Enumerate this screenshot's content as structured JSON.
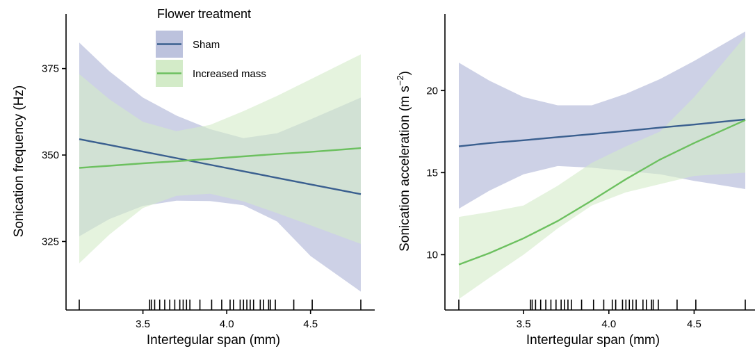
{
  "legend": {
    "title": "Flower treatment",
    "placement": "top-left of left panel"
  },
  "colors": {
    "sham_line": "#3a5f8f",
    "sham_band": "#bcc2dd",
    "increased_line": "#6cc05f",
    "increased_band": "#d3ebc8",
    "axis": "#000000"
  },
  "chart_data": [
    {
      "type": "line",
      "panel": "left",
      "xlabel": "Intertegular span (mm)",
      "ylabel": "Sonication frequency (Hz)",
      "xlim": [
        3.12,
        4.8
      ],
      "ylim": [
        306,
        390
      ],
      "xticks": [
        3.5,
        4.0,
        4.5
      ],
      "xtick_labels": [
        "3.5",
        "4.0",
        "4.5"
      ],
      "yticks": [
        325,
        350,
        375
      ],
      "ytick_labels": [
        "325",
        "350",
        "375"
      ],
      "grid": false,
      "legend_placement": "top-left",
      "x": [
        3.12,
        3.3,
        3.5,
        3.7,
        3.9,
        4.1,
        4.3,
        4.5,
        4.8
      ],
      "series": [
        {
          "name": "Sham",
          "color": "#3a5f8f",
          "band_color": "#bcc2dd",
          "values": [
            354.6,
            352.9,
            351.0,
            349.1,
            347.2,
            345.3,
            343.4,
            341.5,
            338.7
          ],
          "lower": [
            326.5,
            331.5,
            335.3,
            336.8,
            336.7,
            335.5,
            330.8,
            320.8,
            310.5
          ],
          "upper": [
            382.5,
            374.2,
            366.6,
            361.4,
            357.5,
            354.9,
            356.3,
            360.3,
            366.6
          ]
        },
        {
          "name": "Increased mass",
          "color": "#6cc05f",
          "band_color": "#d3ebc8",
          "values": [
            346.3,
            346.9,
            347.6,
            348.2,
            348.9,
            349.6,
            350.3,
            350.9,
            352.0
          ],
          "lower": [
            318.7,
            327.0,
            334.7,
            338.2,
            338.8,
            336.6,
            333.2,
            329.7,
            324.3
          ],
          "upper": [
            373.4,
            366.1,
            359.6,
            356.9,
            358.7,
            362.7,
            367.1,
            371.9,
            379.1
          ]
        }
      ],
      "rug_x": [
        3.12,
        3.54,
        3.55,
        3.57,
        3.6,
        3.63,
        3.66,
        3.69,
        3.72,
        3.74,
        3.76,
        3.78,
        3.84,
        3.91,
        3.97,
        4.02,
        4.04,
        4.08,
        4.1,
        4.12,
        4.14,
        4.16,
        4.2,
        4.22,
        4.25,
        4.26,
        4.29,
        4.4,
        4.51,
        4.8
      ]
    },
    {
      "type": "line",
      "panel": "right",
      "xlabel": "Intertegular span (mm)",
      "ylabel": "Sonication acceleration (m s−2)",
      "xlim": [
        3.12,
        4.8
      ],
      "ylim": [
        6.8,
        24.5
      ],
      "xticks": [
        3.5,
        4.0,
        4.5
      ],
      "xtick_labels": [
        "3.5",
        "4.0",
        "4.5"
      ],
      "yticks": [
        10,
        15,
        20
      ],
      "ytick_labels": [
        "10",
        "15",
        "20"
      ],
      "grid": false,
      "x": [
        3.12,
        3.3,
        3.5,
        3.7,
        3.9,
        4.1,
        4.3,
        4.5,
        4.8
      ],
      "series": [
        {
          "name": "Sham",
          "color": "#3a5f8f",
          "band_color": "#bcc2dd",
          "values": [
            16.6,
            16.8,
            16.97,
            17.16,
            17.35,
            17.54,
            17.74,
            17.93,
            18.24
          ],
          "lower": [
            12.8,
            13.9,
            14.9,
            15.4,
            15.3,
            15.1,
            14.9,
            14.5,
            14.0
          ],
          "upper": [
            21.7,
            20.6,
            19.6,
            19.1,
            19.1,
            19.8,
            20.7,
            21.8,
            23.6
          ]
        },
        {
          "name": "Increased mass",
          "color": "#6cc05f",
          "band_color": "#d3ebc8",
          "values": [
            9.4,
            10.1,
            11.0,
            12.05,
            13.3,
            14.6,
            15.8,
            16.8,
            18.2
          ],
          "lower": [
            7.3,
            8.6,
            10.0,
            11.6,
            13.0,
            13.8,
            14.3,
            14.8,
            15.0
          ],
          "upper": [
            12.3,
            12.6,
            13.0,
            14.2,
            15.6,
            16.6,
            17.5,
            19.6,
            23.3
          ]
        }
      ],
      "rug_x": [
        3.12,
        3.54,
        3.55,
        3.57,
        3.6,
        3.63,
        3.66,
        3.69,
        3.72,
        3.74,
        3.76,
        3.78,
        3.84,
        3.91,
        3.97,
        4.02,
        4.04,
        4.08,
        4.1,
        4.12,
        4.14,
        4.16,
        4.2,
        4.22,
        4.25,
        4.26,
        4.29,
        4.4,
        4.51,
        4.8
      ]
    }
  ]
}
